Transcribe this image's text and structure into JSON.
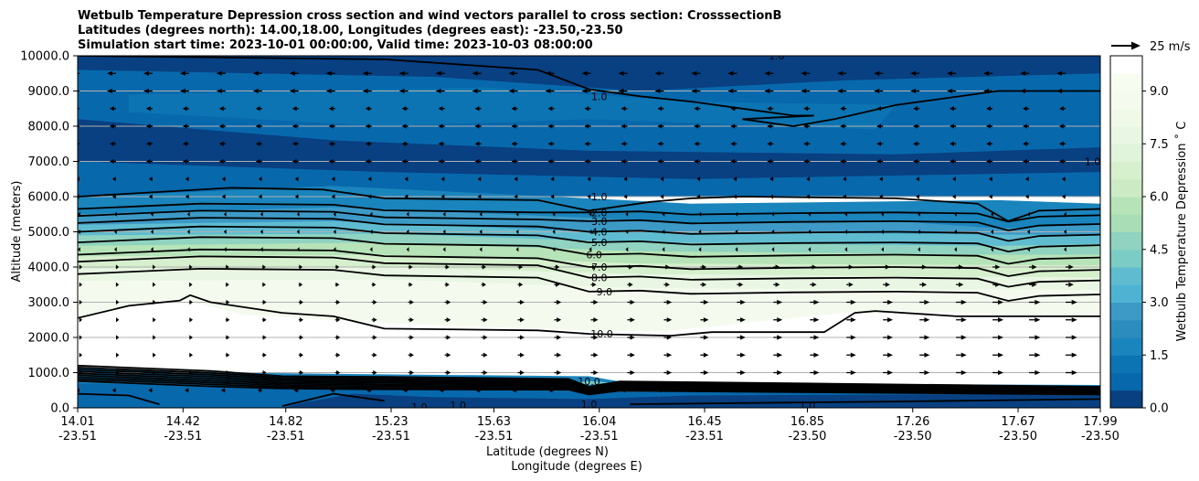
{
  "chart_data": {
    "type": "contour",
    "title_lines": [
      "Wetbulb Temperature Depression cross section and wind vectors parallel to cross section: CrosssectionB",
      "Latitudes (degrees north): 14.00,18.00, Longitudes (degrees east): -23.50,-23.50",
      "Simulation start time: 2023-10-01 00:00:00, Valid time: 2023-10-03 08:00:00"
    ],
    "xlabel_lat": "Latitude (degrees N)",
    "xlabel_lon": "Longitude (degrees E)",
    "ylabel": "Altitude (meters)",
    "ylim": [
      0,
      10000
    ],
    "y_ticks": [
      {
        "v": 0,
        "label": "0.0"
      },
      {
        "v": 1000,
        "label": "1000.0"
      },
      {
        "v": 2000,
        "label": "2000.0"
      },
      {
        "v": 3000,
        "label": "3000.0"
      },
      {
        "v": 4000,
        "label": "4000.0"
      },
      {
        "v": 5000,
        "label": "5000.0"
      },
      {
        "v": 6000,
        "label": "6000.0"
      },
      {
        "v": 7000,
        "label": "7000.0"
      },
      {
        "v": 8000,
        "label": "8000.0"
      },
      {
        "v": 9000,
        "label": "9000.0"
      },
      {
        "v": 10000,
        "label": "10000.0"
      }
    ],
    "x_range": [
      14.01,
      17.99
    ],
    "x_ticks": [
      {
        "lat": 14.01,
        "lat_label": "14.01",
        "lon_label": "-23.51"
      },
      {
        "lat": 14.42,
        "lat_label": "14.42",
        "lon_label": "-23.51"
      },
      {
        "lat": 14.82,
        "lat_label": "14.82",
        "lon_label": "-23.51"
      },
      {
        "lat": 15.23,
        "lat_label": "15.23",
        "lon_label": "-23.51"
      },
      {
        "lat": 15.63,
        "lat_label": "15.63",
        "lon_label": "-23.51"
      },
      {
        "lat": 16.04,
        "lat_label": "16.04",
        "lon_label": "-23.51"
      },
      {
        "lat": 16.45,
        "lat_label": "16.45",
        "lon_label": "-23.51"
      },
      {
        "lat": 16.85,
        "lat_label": "16.85",
        "lon_label": "-23.50"
      },
      {
        "lat": 17.26,
        "lat_label": "17.26",
        "lon_label": "-23.50"
      },
      {
        "lat": 17.67,
        "lat_label": "17.67",
        "lon_label": "-23.50"
      },
      {
        "lat": 17.99,
        "lat_label": "17.99",
        "lon_label": "-23.50"
      }
    ],
    "colorbar": {
      "label": "Wetbulb Temperature Depression $^\\circ$C",
      "label_display": "Wetbulb Temperature Depression ˚ C",
      "range": [
        0,
        10
      ],
      "ticks": [
        {
          "v": 0,
          "label": "0.0"
        },
        {
          "v": 1.5,
          "label": "1.5"
        },
        {
          "v": 3,
          "label": "3.0"
        },
        {
          "v": 4.5,
          "label": "4.5"
        },
        {
          "v": 6,
          "label": "6.0"
        },
        {
          "v": 7.5,
          "label": "7.5"
        },
        {
          "v": 9,
          "label": "9.0"
        }
      ],
      "levels": [
        0,
        0.5,
        1,
        1.5,
        2,
        2.5,
        3,
        3.5,
        4,
        4.5,
        5,
        5.5,
        6,
        6.5,
        7,
        7.5,
        8,
        8.5,
        9,
        9.5,
        10
      ],
      "colors": [
        "#084081",
        "#0868ac",
        "#0c74b2",
        "#1a84bc",
        "#2b8cbe",
        "#3d9ac7",
        "#4eb3d3",
        "#5fbcd0",
        "#7bccc4",
        "#8fd3c0",
        "#a8ddb5",
        "#b6e3b7",
        "#ccebc5",
        "#d6efcd",
        "#e0f3db",
        "#e8f6e3",
        "#f0f9e8",
        "#f4fbee",
        "#f7fcf0",
        "#ffffff"
      ]
    },
    "wind_key": {
      "value": 25,
      "label": "25 m/s"
    },
    "contour_labels": [
      {
        "text": "1.0",
        "lat": 16.04,
        "alt": 8850
      },
      {
        "text": "1.0",
        "lat": 16.04,
        "alt": 6000
      },
      {
        "text": "2.0",
        "lat": 16.04,
        "alt": 5550
      },
      {
        "text": "3.0",
        "lat": 16.04,
        "alt": 5300
      },
      {
        "text": "4.0",
        "lat": 16.04,
        "alt": 5000
      },
      {
        "text": "5.0",
        "lat": 16.04,
        "alt": 4700
      },
      {
        "text": "6.0",
        "lat": 16.02,
        "alt": 4350
      },
      {
        "text": "7.0",
        "lat": 16.04,
        "alt": 4000
      },
      {
        "text": "8.0",
        "lat": 16.04,
        "alt": 3700
      },
      {
        "text": "9.0",
        "lat": 16.06,
        "alt": 3300
      },
      {
        "text": "10.0",
        "lat": 16.05,
        "alt": 2100
      },
      {
        "text": "10.0",
        "lat": 16.0,
        "alt": 750
      },
      {
        "text": "1.0",
        "lat": 16.0,
        "alt": 100
      },
      {
        "text": "1.0",
        "lat": 15.34,
        "alt": 30
      },
      {
        "text": "1.0",
        "lat": 15.49,
        "alt": 80
      },
      {
        "text": "1.0",
        "lat": 16.85,
        "alt": 80
      },
      {
        "text": "1.0",
        "lat": 16.73,
        "alt": 10000
      },
      {
        "text": "1.0",
        "lat": 17.96,
        "alt": 7000
      }
    ],
    "colorbar_line_values": [
      1,
      2,
      3,
      4,
      5,
      6,
      7,
      8,
      9,
      10
    ]
  }
}
